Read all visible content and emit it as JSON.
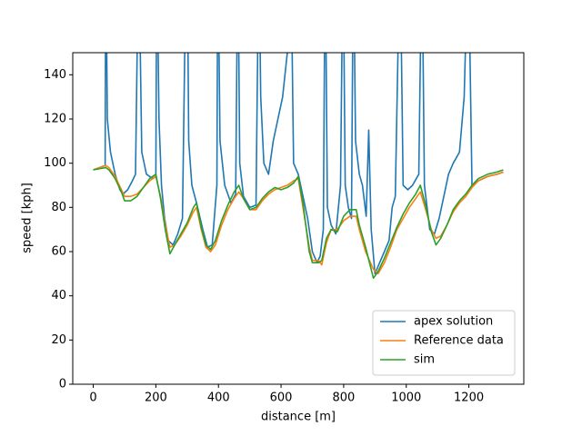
{
  "chart_data": {
    "type": "line",
    "xlabel": "distance [m]",
    "ylabel": "speed [kph]",
    "xlim": [
      -65.5,
      1375.5
    ],
    "ylim": [
      0,
      150
    ],
    "xticks": [
      0,
      200,
      400,
      600,
      800,
      1000,
      1200
    ],
    "yticks": [
      0,
      20,
      40,
      60,
      80,
      100,
      120,
      140
    ],
    "legend": "lower right",
    "series": [
      {
        "name": "apex solution",
        "color": "#1f77b4",
        "x": [
          0,
          20,
          38,
          40,
          45,
          55,
          70,
          85,
          95,
          110,
          125,
          135,
          145,
          155,
          170,
          190,
          200,
          203,
          210,
          218,
          228,
          240,
          255,
          270,
          285,
          297,
          300,
          305,
          315,
          330,
          350,
          365,
          380,
          395,
          398,
          405,
          420,
          440,
          455,
          462,
          468,
          480,
          500,
          520,
          529,
          535,
          545,
          560,
          575,
          590,
          605,
          620,
          631,
          640,
          655,
          670,
          685,
          700,
          715,
          725,
          735,
          741,
          748,
          760,
          775,
          790,
          798,
          805,
          815,
          825,
          831,
          838,
          850,
          860,
          872,
          880,
          888,
          900,
          915,
          930,
          945,
          955,
          965,
          980,
          990,
          1005,
          1020,
          1040,
          1050,
          1058,
          1075,
          1090,
          1105,
          1120,
          1135,
          1150,
          1170,
          1185,
          1198,
          1210,
          1230,
          1260,
          1290,
          1310
        ],
        "values": [
          97,
          98,
          99,
          200,
          120,
          105,
          95,
          88,
          86,
          88,
          92,
          95,
          200,
          105,
          95,
          93,
          94,
          200,
          120,
          90,
          75,
          65,
          63,
          68,
          75,
          200,
          200,
          110,
          90,
          82,
          70,
          62,
          63,
          90,
          200,
          110,
          90,
          82,
          86,
          200,
          100,
          85,
          80,
          81,
          200,
          130,
          100,
          95,
          110,
          120,
          130,
          150,
          200,
          100,
          95,
          85,
          75,
          60,
          55,
          58,
          70,
          200,
          80,
          72,
          68,
          90,
          200,
          90,
          80,
          75,
          200,
          110,
          95,
          90,
          76,
          115,
          70,
          50,
          55,
          60,
          65,
          80,
          85,
          200,
          90,
          88,
          90,
          95,
          200,
          90,
          70,
          68,
          75,
          85,
          95,
          100,
          105,
          130,
          200,
          90,
          92,
          94,
          95,
          96
        ]
      },
      {
        "name": "Reference data",
        "color": "#ff7f0e",
        "x": [
          0,
          20,
          40,
          50,
          70,
          90,
          100,
          120,
          140,
          160,
          180,
          200,
          215,
          230,
          245,
          260,
          280,
          300,
          320,
          330,
          345,
          360,
          375,
          390,
          410,
          430,
          450,
          465,
          480,
          500,
          520,
          540,
          560,
          580,
          600,
          620,
          640,
          655,
          670,
          690,
          700,
          720,
          730,
          745,
          760,
          780,
          800,
          820,
          840,
          850,
          870,
          895,
          910,
          930,
          950,
          970,
          990,
          1010,
          1030,
          1045,
          1060,
          1080,
          1095,
          1110,
          1130,
          1150,
          1170,
          1190,
          1210,
          1230,
          1260,
          1290,
          1310
        ],
        "values": [
          97,
          98,
          99,
          98,
          94,
          88,
          85,
          85,
          86,
          89,
          92,
          94,
          85,
          72,
          62,
          63,
          67,
          72,
          78,
          80,
          70,
          62,
          60,
          63,
          72,
          79,
          84,
          87,
          84,
          79,
          79,
          83,
          86,
          88,
          89,
          90,
          92,
          93,
          80,
          62,
          56,
          56,
          54,
          64,
          70,
          70,
          74,
          76,
          76,
          70,
          60,
          52,
          50,
          55,
          62,
          70,
          75,
          80,
          84,
          87,
          80,
          70,
          66,
          67,
          72,
          78,
          82,
          85,
          89,
          92,
          94,
          95,
          96
        ]
      },
      {
        "name": "sim",
        "color": "#2ca02c",
        "x": [
          0,
          20,
          40,
          50,
          70,
          90,
          100,
          120,
          140,
          160,
          180,
          200,
          215,
          230,
          245,
          260,
          280,
          300,
          320,
          330,
          345,
          360,
          375,
          390,
          410,
          430,
          450,
          465,
          480,
          500,
          520,
          540,
          560,
          580,
          600,
          620,
          640,
          655,
          670,
          690,
          700,
          720,
          730,
          745,
          760,
          780,
          800,
          820,
          840,
          850,
          870,
          895,
          910,
          930,
          950,
          970,
          990,
          1010,
          1030,
          1045,
          1060,
          1080,
          1095,
          1110,
          1130,
          1150,
          1170,
          1190,
          1210,
          1230,
          1260,
          1290,
          1310
        ],
        "values": [
          97,
          97.5,
          98,
          97,
          93,
          87,
          83,
          83,
          85,
          89,
          93,
          95,
          84,
          70,
          59,
          63,
          68,
          73,
          80,
          82,
          71,
          63,
          61,
          65,
          74,
          81,
          87,
          90,
          84,
          79,
          80,
          84,
          87,
          89,
          88,
          89,
          91,
          94,
          82,
          60,
          55,
          55,
          56,
          66,
          70,
          69,
          76,
          79,
          79,
          72,
          62,
          48,
          51,
          57,
          64,
          71,
          77,
          82,
          86,
          90,
          82,
          69,
          63,
          66,
          72,
          79,
          83,
          86,
          90,
          93,
          95,
          96,
          97
        ]
      }
    ]
  }
}
